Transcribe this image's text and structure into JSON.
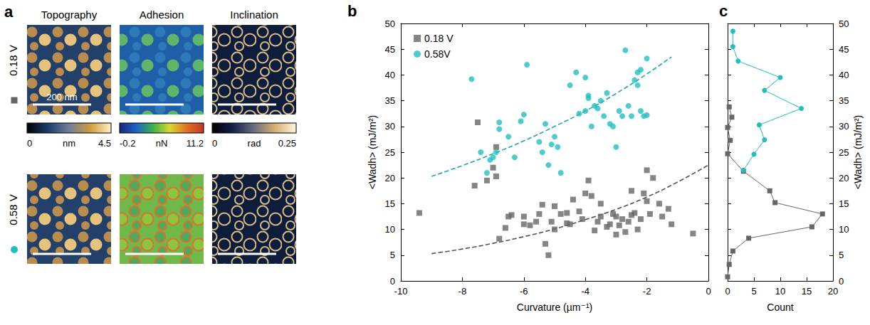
{
  "panel_a": {
    "panel_label": "a",
    "columns": [
      "Topography",
      "Adhesion",
      "Inclination"
    ],
    "rows": [
      {
        "label": "0.18 V",
        "color": "#666666",
        "marker": "square"
      },
      {
        "label": "0.58 V",
        "color": "#1fbfbf",
        "marker": "circle"
      }
    ],
    "scale_bar": "200 nm",
    "colorbars": [
      {
        "min": 0,
        "max": 4.5,
        "unit": "nm"
      },
      {
        "min": -0.2,
        "max": 11.2,
        "unit": "nN"
      },
      {
        "min": 0,
        "max": 0.25,
        "unit": "rad"
      }
    ]
  },
  "chart_data": [
    {
      "panel_label": "b",
      "type": "scatter",
      "x_label": "Curvature (µm⁻¹)",
      "y_label": "<Wadh> (mJ/m²)",
      "xlim": [
        -10,
        0
      ],
      "xticks": [
        -10,
        -8,
        -6,
        -4,
        -2,
        0
      ],
      "ylim": [
        0,
        50
      ],
      "yticks": [
        0,
        5,
        10,
        15,
        20,
        25,
        30,
        35,
        40,
        45,
        50
      ],
      "legend": "top-left",
      "series": [
        {
          "name": "0.18 V",
          "color": "#666666",
          "marker": "square",
          "values": [
            [
              -9.4,
              13.2
            ],
            [
              -7.5,
              30.8
            ],
            [
              -7.6,
              18.5
            ],
            [
              -7.2,
              19.5
            ],
            [
              -7.0,
              22.0
            ],
            [
              -6.9,
              20.3
            ],
            [
              -6.9,
              26.0
            ],
            [
              -6.8,
              8.2
            ],
            [
              -6.6,
              10.3
            ],
            [
              -6.5,
              12.5
            ],
            [
              -6.4,
              12.8
            ],
            [
              -6.0,
              12.5
            ],
            [
              -6.0,
              11.0
            ],
            [
              -5.8,
              10.8
            ],
            [
              -5.6,
              11.5
            ],
            [
              -5.5,
              13.0
            ],
            [
              -5.4,
              14.8
            ],
            [
              -5.3,
              7.2
            ],
            [
              -5.2,
              5.0
            ],
            [
              -5.1,
              11.5
            ],
            [
              -5.0,
              14.5
            ],
            [
              -4.8,
              13.0
            ],
            [
              -4.6,
              13.2
            ],
            [
              -4.6,
              11.2
            ],
            [
              -4.4,
              15.8
            ],
            [
              -4.2,
              13.5
            ],
            [
              -4.1,
              12.0
            ],
            [
              -4.0,
              17.0
            ],
            [
              -3.9,
              19.5
            ],
            [
              -3.8,
              16.5
            ],
            [
              -3.7,
              9.8
            ],
            [
              -3.6,
              11.5
            ],
            [
              -3.5,
              12.5
            ],
            [
              -3.3,
              10.5
            ],
            [
              -3.2,
              11.0
            ],
            [
              -3.1,
              13.0
            ],
            [
              -3.0,
              12.5
            ],
            [
              -2.9,
              10.8
            ],
            [
              -2.8,
              12.0
            ],
            [
              -2.7,
              9.5
            ],
            [
              -2.6,
              11.5
            ],
            [
              -2.5,
              12.8
            ],
            [
              -2.4,
              13.2
            ],
            [
              -2.3,
              10.0
            ],
            [
              -2.2,
              12.0
            ],
            [
              -2.1,
              17.0
            ],
            [
              -2.0,
              21.5
            ],
            [
              -2.0,
              15.5
            ],
            [
              -1.9,
              13.0
            ],
            [
              -1.8,
              20.0
            ],
            [
              -1.6,
              15.0
            ],
            [
              -1.5,
              12.5
            ],
            [
              -1.3,
              14.0
            ],
            [
              -1.2,
              11.0
            ],
            [
              -0.5,
              9.2
            ],
            [
              -3.5,
              15.0
            ],
            [
              -4.5,
              11.0
            ],
            [
              -2.5,
              17.5
            ],
            [
              -3.0,
              9.0
            ],
            [
              -5.0,
              10.0
            ]
          ]
        },
        {
          "name": "0.58V",
          "color": "#1fbfbf",
          "marker": "circle",
          "values": [
            [
              -7.7,
              39.2
            ],
            [
              -5.9,
              42.0
            ],
            [
              -7.4,
              25.0
            ],
            [
              -7.2,
              21.0
            ],
            [
              -7.1,
              23.5
            ],
            [
              -7.0,
              24.0
            ],
            [
              -6.9,
              25.0
            ],
            [
              -6.8,
              30.8
            ],
            [
              -6.8,
              29.5
            ],
            [
              -6.5,
              28.0
            ],
            [
              -6.1,
              31.0
            ],
            [
              -6.0,
              32.3
            ],
            [
              -5.5,
              27.0
            ],
            [
              -5.4,
              25.0
            ],
            [
              -5.3,
              30.5
            ],
            [
              -5.2,
              22.5
            ],
            [
              -5.1,
              26.5
            ],
            [
              -5.0,
              28.0
            ],
            [
              -4.9,
              26.0
            ],
            [
              -4.8,
              21.0
            ],
            [
              -4.3,
              40.5
            ],
            [
              -4.2,
              32.5
            ],
            [
              -4.0,
              39.5
            ],
            [
              -4.0,
              33.0
            ],
            [
              -3.9,
              36.0
            ],
            [
              -3.8,
              30.0
            ],
            [
              -3.7,
              34.0
            ],
            [
              -3.6,
              33.5
            ],
            [
              -3.5,
              35.0
            ],
            [
              -3.4,
              32.0
            ],
            [
              -3.3,
              36.5
            ],
            [
              -3.2,
              30.5
            ],
            [
              -3.1,
              30.0
            ],
            [
              -3.0,
              26.0
            ],
            [
              -2.9,
              33.0
            ],
            [
              -2.8,
              32.0
            ],
            [
              -2.7,
              44.8
            ],
            [
              -2.6,
              34.0
            ],
            [
              -2.5,
              32.0
            ],
            [
              -2.4,
              39.0
            ],
            [
              -2.3,
              40.5
            ],
            [
              -2.2,
              41.0
            ],
            [
              -2.2,
              33.0
            ],
            [
              -2.1,
              32.0
            ],
            [
              -2.0,
              43.2
            ],
            [
              -2.0,
              32.2
            ],
            [
              -2.3,
              38.0
            ],
            [
              -4.5,
              38.0
            ],
            [
              -3.9,
              35.5
            ],
            [
              -6.3,
              24.0
            ]
          ]
        },
        {
          "type": "line",
          "line_style": "dashed",
          "color": "#555555",
          "values": [
            [
              -9,
              5.3
            ],
            [
              -8,
              6.2
            ],
            [
              -7,
              7.3
            ],
            [
              -6,
              8.6
            ],
            [
              -5,
              10.1
            ],
            [
              -4,
              11.9
            ],
            [
              -3,
              13.9
            ],
            [
              -2,
              16.3
            ],
            [
              -1,
              19.2
            ],
            [
              0,
              22.5
            ]
          ]
        },
        {
          "type": "line",
          "line_style": "dashed",
          "color": "#1aa9b2",
          "values": [
            [
              -9,
              20.3
            ],
            [
              -8,
              22.4
            ],
            [
              -7,
              24.7
            ],
            [
              -6,
              27.2
            ],
            [
              -5,
              30.0
            ],
            [
              -4,
              33.0
            ],
            [
              -3,
              36.4
            ],
            [
              -2,
              40.2
            ],
            [
              -1.2,
              43.5
            ]
          ]
        }
      ]
    },
    {
      "panel_label": "c",
      "type": "line",
      "x_label": "Count",
      "y_label": "<Wadh> (mJ/m²)",
      "xlim": [
        0,
        20
      ],
      "xticks": [
        0,
        5,
        10,
        15,
        20
      ],
      "ylim": [
        0,
        50
      ],
      "yticks": [
        0,
        5,
        10,
        15,
        20,
        25,
        30,
        35,
        40,
        45,
        50
      ],
      "series": [
        {
          "color": "#666666",
          "marker": "square",
          "values": [
            [
              0,
              0.8
            ],
            [
              0.3,
              3.2
            ],
            [
              1,
              5.8
            ],
            [
              4,
              8.3
            ],
            [
              16,
              10.5
            ],
            [
              18,
              13.0
            ],
            [
              9,
              15.2
            ],
            [
              8,
              17.5
            ],
            [
              3,
              21.3
            ],
            [
              0,
              24.7
            ],
            [
              0.5,
              27.3
            ],
            [
              0,
              29.8
            ],
            [
              0.8,
              31.8
            ],
            [
              0.3,
              33.8
            ]
          ]
        },
        {
          "color": "#1fbfbf",
          "marker": "circle",
          "values": [
            [
              3,
              21.5
            ],
            [
              5,
              24.6
            ],
            [
              7,
              27.4
            ],
            [
              6,
              30.3
            ],
            [
              14,
              33.5
            ],
            [
              7,
              37.0
            ],
            [
              10,
              39.5
            ],
            [
              2,
              42.7
            ],
            [
              1,
              45.5
            ],
            [
              1,
              48.5
            ]
          ]
        }
      ]
    }
  ]
}
